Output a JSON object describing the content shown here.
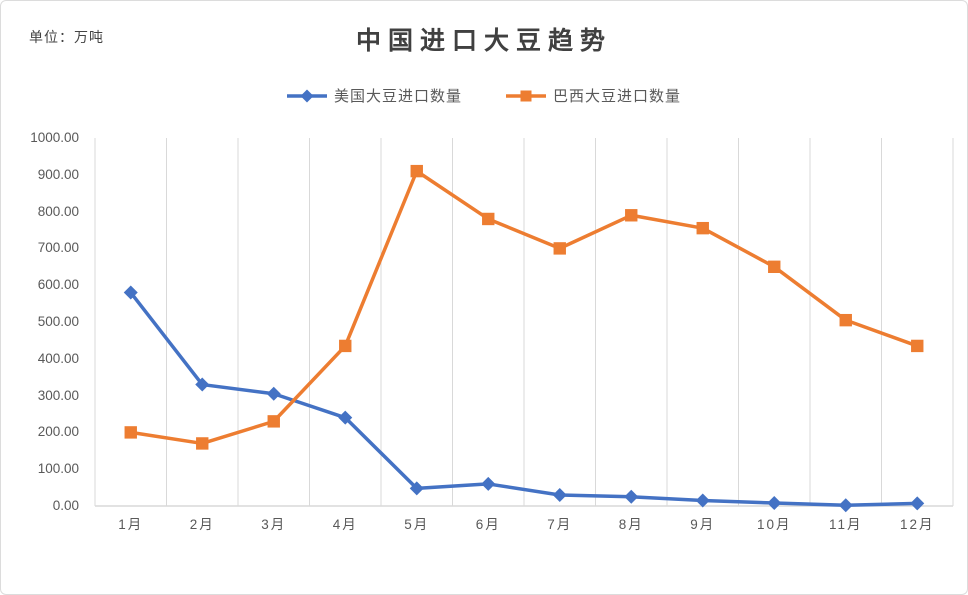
{
  "header": {
    "unit_label": "单位：万吨",
    "title": "中国进口大豆趋势"
  },
  "chart_data": {
    "type": "line",
    "title": "中国进口大豆趋势",
    "ylabel": "单位：万吨",
    "categories": [
      "1月",
      "2月",
      "3月",
      "4月",
      "5月",
      "6月",
      "7月",
      "8月",
      "9月",
      "10月",
      "11月",
      "12月"
    ],
    "series": [
      {
        "name": "美国大豆进口数量",
        "color": "#4472C4",
        "marker": "diamond",
        "values": [
          580,
          330,
          305,
          240,
          48,
          60,
          30,
          25,
          15,
          8,
          2,
          7
        ]
      },
      {
        "name": "巴西大豆进口数量",
        "color": "#ED7D31",
        "marker": "square",
        "values": [
          200,
          170,
          230,
          435,
          910,
          780,
          700,
          790,
          755,
          650,
          505,
          435
        ]
      }
    ],
    "ylim": [
      0,
      1000
    ],
    "ytick_step": 100,
    "ytick_decimals": 2,
    "grid": "vertical",
    "grid_color": "#D9D9D9",
    "axis_text_color": "#595959",
    "legend_position": "top"
  }
}
